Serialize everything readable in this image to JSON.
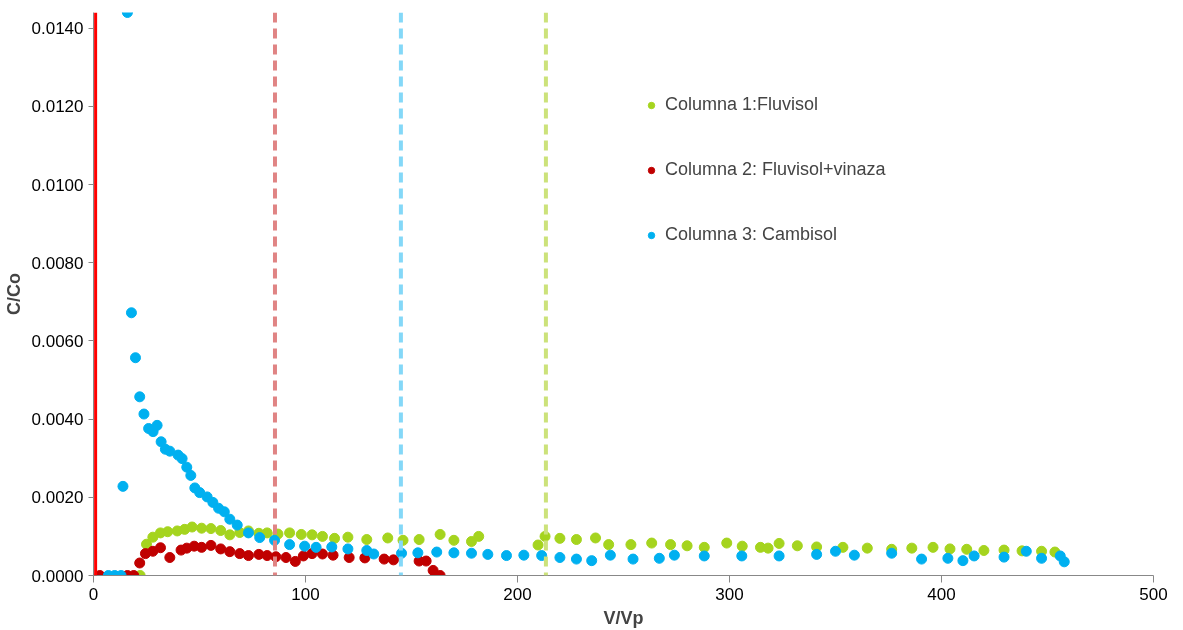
{
  "chart_data": {
    "type": "scatter",
    "xlabel": "V/Vp",
    "ylabel": "C/Co",
    "xlim": [
      0,
      500
    ],
    "ylim": [
      0,
      0.0144
    ],
    "xticks": [
      0,
      100,
      200,
      300,
      400,
      500
    ],
    "yticks": [
      {
        "value": 0,
        "label": "0.0000"
      },
      {
        "value": 0.002,
        "label": "0.0020"
      },
      {
        "value": 0.004,
        "label": "0.0040"
      },
      {
        "value": 0.006,
        "label": "0.0060"
      },
      {
        "value": 0.008,
        "label": "0.0080"
      },
      {
        "value": 0.01,
        "label": "0.0100"
      },
      {
        "value": 0.012,
        "label": "0.0120"
      },
      {
        "value": 0.014,
        "label": "0.0140"
      }
    ],
    "grid": false,
    "legend": "top right",
    "marker": "circle",
    "series": [
      {
        "name": "Columna 1:Fluvisol",
        "color": "#a5d41e",
        "x": [
          22,
          25,
          28,
          31.6,
          35,
          39.5,
          43,
          46.5,
          51,
          55.4,
          60,
          64.3,
          69,
          73.1,
          78,
          81.9,
          87,
          92.5,
          98,
          103.1,
          108,
          113.7,
          120,
          128.9,
          138.8,
          146,
          153.6,
          163.5,
          170,
          178.3,
          181.7,
          209.7,
          213,
          220,
          227.8,
          236.8,
          243,
          253.5,
          263.3,
          272.2,
          280,
          288.1,
          298.7,
          306,
          314.6,
          318.2,
          323.4,
          332,
          341.1,
          353.5,
          365,
          376.5,
          386,
          396,
          404,
          411.9,
          420,
          429.5,
          438,
          447.2,
          453.5
        ],
        "values": [
          0,
          0.0008,
          0.00098,
          0.00109,
          0.00112,
          0.00114,
          0.00118,
          0.00124,
          0.00121,
          0.0012,
          0.00115,
          0.00104,
          0.0011,
          0.00114,
          0.00108,
          0.00109,
          0.00106,
          0.00109,
          0.00105,
          0.00104,
          0.001,
          0.00095,
          0.00098,
          0.00092,
          0.00096,
          0.0009,
          0.00092,
          0.00105,
          0.0009,
          0.00087,
          0.001,
          0.00078,
          0.001,
          0.00095,
          0.00092,
          0.00096,
          0.00079,
          0.00079,
          0.00083,
          0.00079,
          0.00076,
          0.00072,
          0.00083,
          0.00075,
          0.00072,
          0.0007,
          0.00082,
          0.00076,
          0.00073,
          0.00072,
          0.0007,
          0.00067,
          0.0007,
          0.00072,
          0.00068,
          0.00067,
          0.00064,
          0.00065,
          0.00063,
          0.00062,
          0.0006
        ]
      },
      {
        "name": "Columna 2: Fluvisol+vinaza",
        "color": "#c00000",
        "x": [
          3,
          16,
          19,
          21.8,
          24.5,
          28,
          31.6,
          36,
          41.3,
          44,
          47.5,
          51,
          55.4,
          60,
          64.3,
          69,
          73.1,
          78,
          81.9,
          86,
          90.8,
          95.2,
          99,
          103.1,
          108,
          113,
          120.6,
          128,
          137.1,
          141.5,
          153.6,
          156.9,
          160.2,
          163.5
        ],
        "values": [
          0,
          0,
          0,
          0.00032,
          0.00056,
          0.00062,
          0.00071,
          0.00046,
          0.00065,
          0.0007,
          0.00075,
          0.00072,
          0.00077,
          0.00068,
          0.00061,
          0.00056,
          0.00051,
          0.00054,
          0.00051,
          0.00048,
          0.00046,
          0.00036,
          0.0005,
          0.00056,
          0.00055,
          0.00052,
          0.00046,
          0.00045,
          0.00042,
          0.0004,
          0.00037,
          0.00037,
          0.00013,
          0
        ]
      },
      {
        "name": "Columna 3: Cambisol",
        "color": "#00b0f0",
        "x": [
          7,
          10,
          13,
          13.9,
          16,
          17.9,
          19.8,
          21.8,
          23.8,
          26,
          28.1,
          30,
          31.9,
          33.9,
          36,
          39.9,
          41.8,
          44,
          45.9,
          47.8,
          50.1,
          53.6,
          56.3,
          59,
          61.7,
          64.3,
          67.8,
          73.1,
          78.4,
          85.4,
          92.5,
          99.6,
          105,
          112.4,
          120,
          128.9,
          132.2,
          145.3,
          153,
          161.9,
          170,
          178.3,
          186,
          194.8,
          203,
          211.4,
          220,
          227.8,
          235,
          243.8,
          254.5,
          266.9,
          274,
          288.1,
          305.8,
          323.4,
          341.1,
          350,
          358.9,
          376.5,
          390.6,
          403,
          410.1,
          415.4,
          429.5,
          440,
          447.2,
          456,
          457.9
        ],
        "values": [
          0,
          0,
          0,
          0.00228,
          0.0144,
          0.00672,
          0.00557,
          0.00457,
          0.00413,
          0.00376,
          0.00368,
          0.00384,
          0.00342,
          0.00323,
          0.00318,
          0.00308,
          0.00299,
          0.00277,
          0.00256,
          0.00224,
          0.00212,
          0.00201,
          0.00187,
          0.00172,
          0.00163,
          0.00144,
          0.00129,
          0.00109,
          0.00097,
          0.0009,
          0.00079,
          0.00075,
          0.00072,
          0.00073,
          0.00068,
          0.00064,
          0.00055,
          0.00057,
          0.00058,
          0.0006,
          0.00058,
          0.00057,
          0.00054,
          0.00051,
          0.00052,
          0.00051,
          0.00046,
          0.00042,
          0.00038,
          0.00052,
          0.00042,
          0.00044,
          0.00052,
          0.0005,
          0.0005,
          0.0005,
          0.00054,
          0.00062,
          0.00052,
          0.00057,
          0.00042,
          0.00044,
          0.00038,
          0.0005,
          0.00047,
          0.00062,
          0.00044,
          0.0005,
          0.00035
        ]
      }
    ],
    "ref_lines": [
      {
        "axis": "x",
        "value": 1,
        "color": "#ff0000",
        "line_style": "solid"
      },
      {
        "axis": "x",
        "value": 85.6,
        "color": "#e08484",
        "line_style": "dashed"
      },
      {
        "axis": "x",
        "value": 145,
        "color": "#84d8f8",
        "line_style": "dashed"
      },
      {
        "axis": "x",
        "value": 213.4,
        "color": "#cce27a",
        "line_style": "dashed"
      }
    ]
  }
}
